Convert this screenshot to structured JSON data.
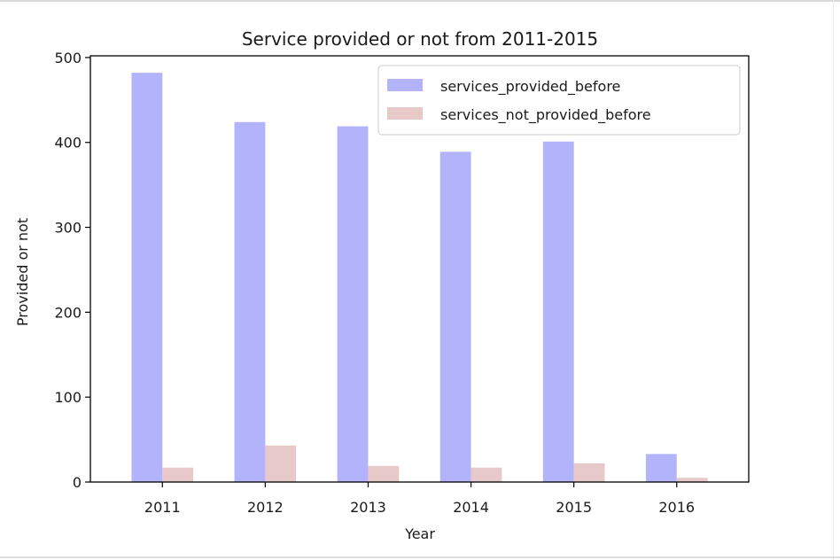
{
  "chart_data": {
    "type": "bar",
    "title": "Service provided or not from 2011-2015",
    "xlabel": "Year",
    "ylabel": "Provided or not",
    "categories": [
      "2011",
      "2012",
      "2013",
      "2014",
      "2015",
      "2016"
    ],
    "series": [
      {
        "name": "services_provided_before",
        "values": [
          482,
          424,
          419,
          389,
          401,
          33
        ],
        "color": "#b3b3fb"
      },
      {
        "name": "services_not_provided_before",
        "values": [
          17,
          43,
          19,
          17,
          22,
          5
        ],
        "color": "#e8c9c9"
      }
    ],
    "ylim": [
      0,
      502
    ],
    "yticks": [
      0,
      100,
      200,
      300,
      400,
      500
    ],
    "grid": false,
    "legend_position": "top-right"
  }
}
